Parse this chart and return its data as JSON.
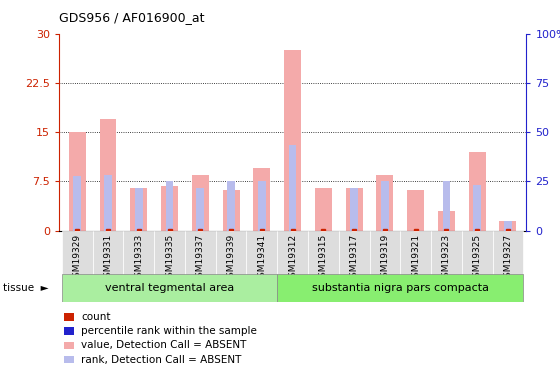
{
  "title": "GDS956 / AF016900_at",
  "samples": [
    "GSM19329",
    "GSM19331",
    "GSM19333",
    "GSM19335",
    "GSM19337",
    "GSM19339",
    "GSM19341",
    "GSM19312",
    "GSM19315",
    "GSM19317",
    "GSM19319",
    "GSM19321",
    "GSM19323",
    "GSM19325",
    "GSM19327"
  ],
  "value_absent": [
    15.0,
    17.0,
    6.5,
    6.8,
    8.5,
    6.2,
    9.5,
    27.5,
    6.5,
    6.5,
    8.5,
    6.2,
    3.0,
    12.0,
    1.5
  ],
  "rank_absent_pct": [
    28.0,
    28.5,
    21.5,
    25.0,
    21.5,
    25.0,
    25.0,
    43.5,
    0.0,
    21.5,
    25.0,
    0.0,
    25.0,
    23.0,
    5.0
  ],
  "ylim_left": [
    0,
    30
  ],
  "ylim_right": [
    0,
    100
  ],
  "yticks_left": [
    0,
    7.5,
    15,
    22.5,
    30
  ],
  "yticks_right": [
    0,
    25,
    50,
    75,
    100
  ],
  "ytick_labels_left": [
    "0",
    "7.5",
    "15",
    "22.5",
    "30"
  ],
  "ytick_labels_right": [
    "0",
    "25",
    "50",
    "75",
    "100%"
  ],
  "group1_label": "ventral tegmental area",
  "group2_label": "substantia nigra pars compacta",
  "group1_count": 7,
  "group2_count": 8,
  "tissue_label": "tissue",
  "color_value_absent": "#F4AAAA",
  "color_rank_absent": "#B8BCEC",
  "color_count": "#CC2200",
  "color_rank_present": "#2222CC",
  "bar_width": 0.55,
  "rank_bar_width": 0.25,
  "group1_color": "#AAEEA0",
  "group2_color": "#88EE70",
  "left_axis_color": "#CC2200",
  "right_axis_color": "#2222CC",
  "xtick_bg": "#DDDDDD",
  "legend_items": [
    {
      "color": "#CC2200",
      "label": "count"
    },
    {
      "color": "#2222CC",
      "label": "percentile rank within the sample"
    },
    {
      "color": "#F4AAAA",
      "label": "value, Detection Call = ABSENT"
    },
    {
      "color": "#B8BCEC",
      "label": "rank, Detection Call = ABSENT"
    }
  ]
}
